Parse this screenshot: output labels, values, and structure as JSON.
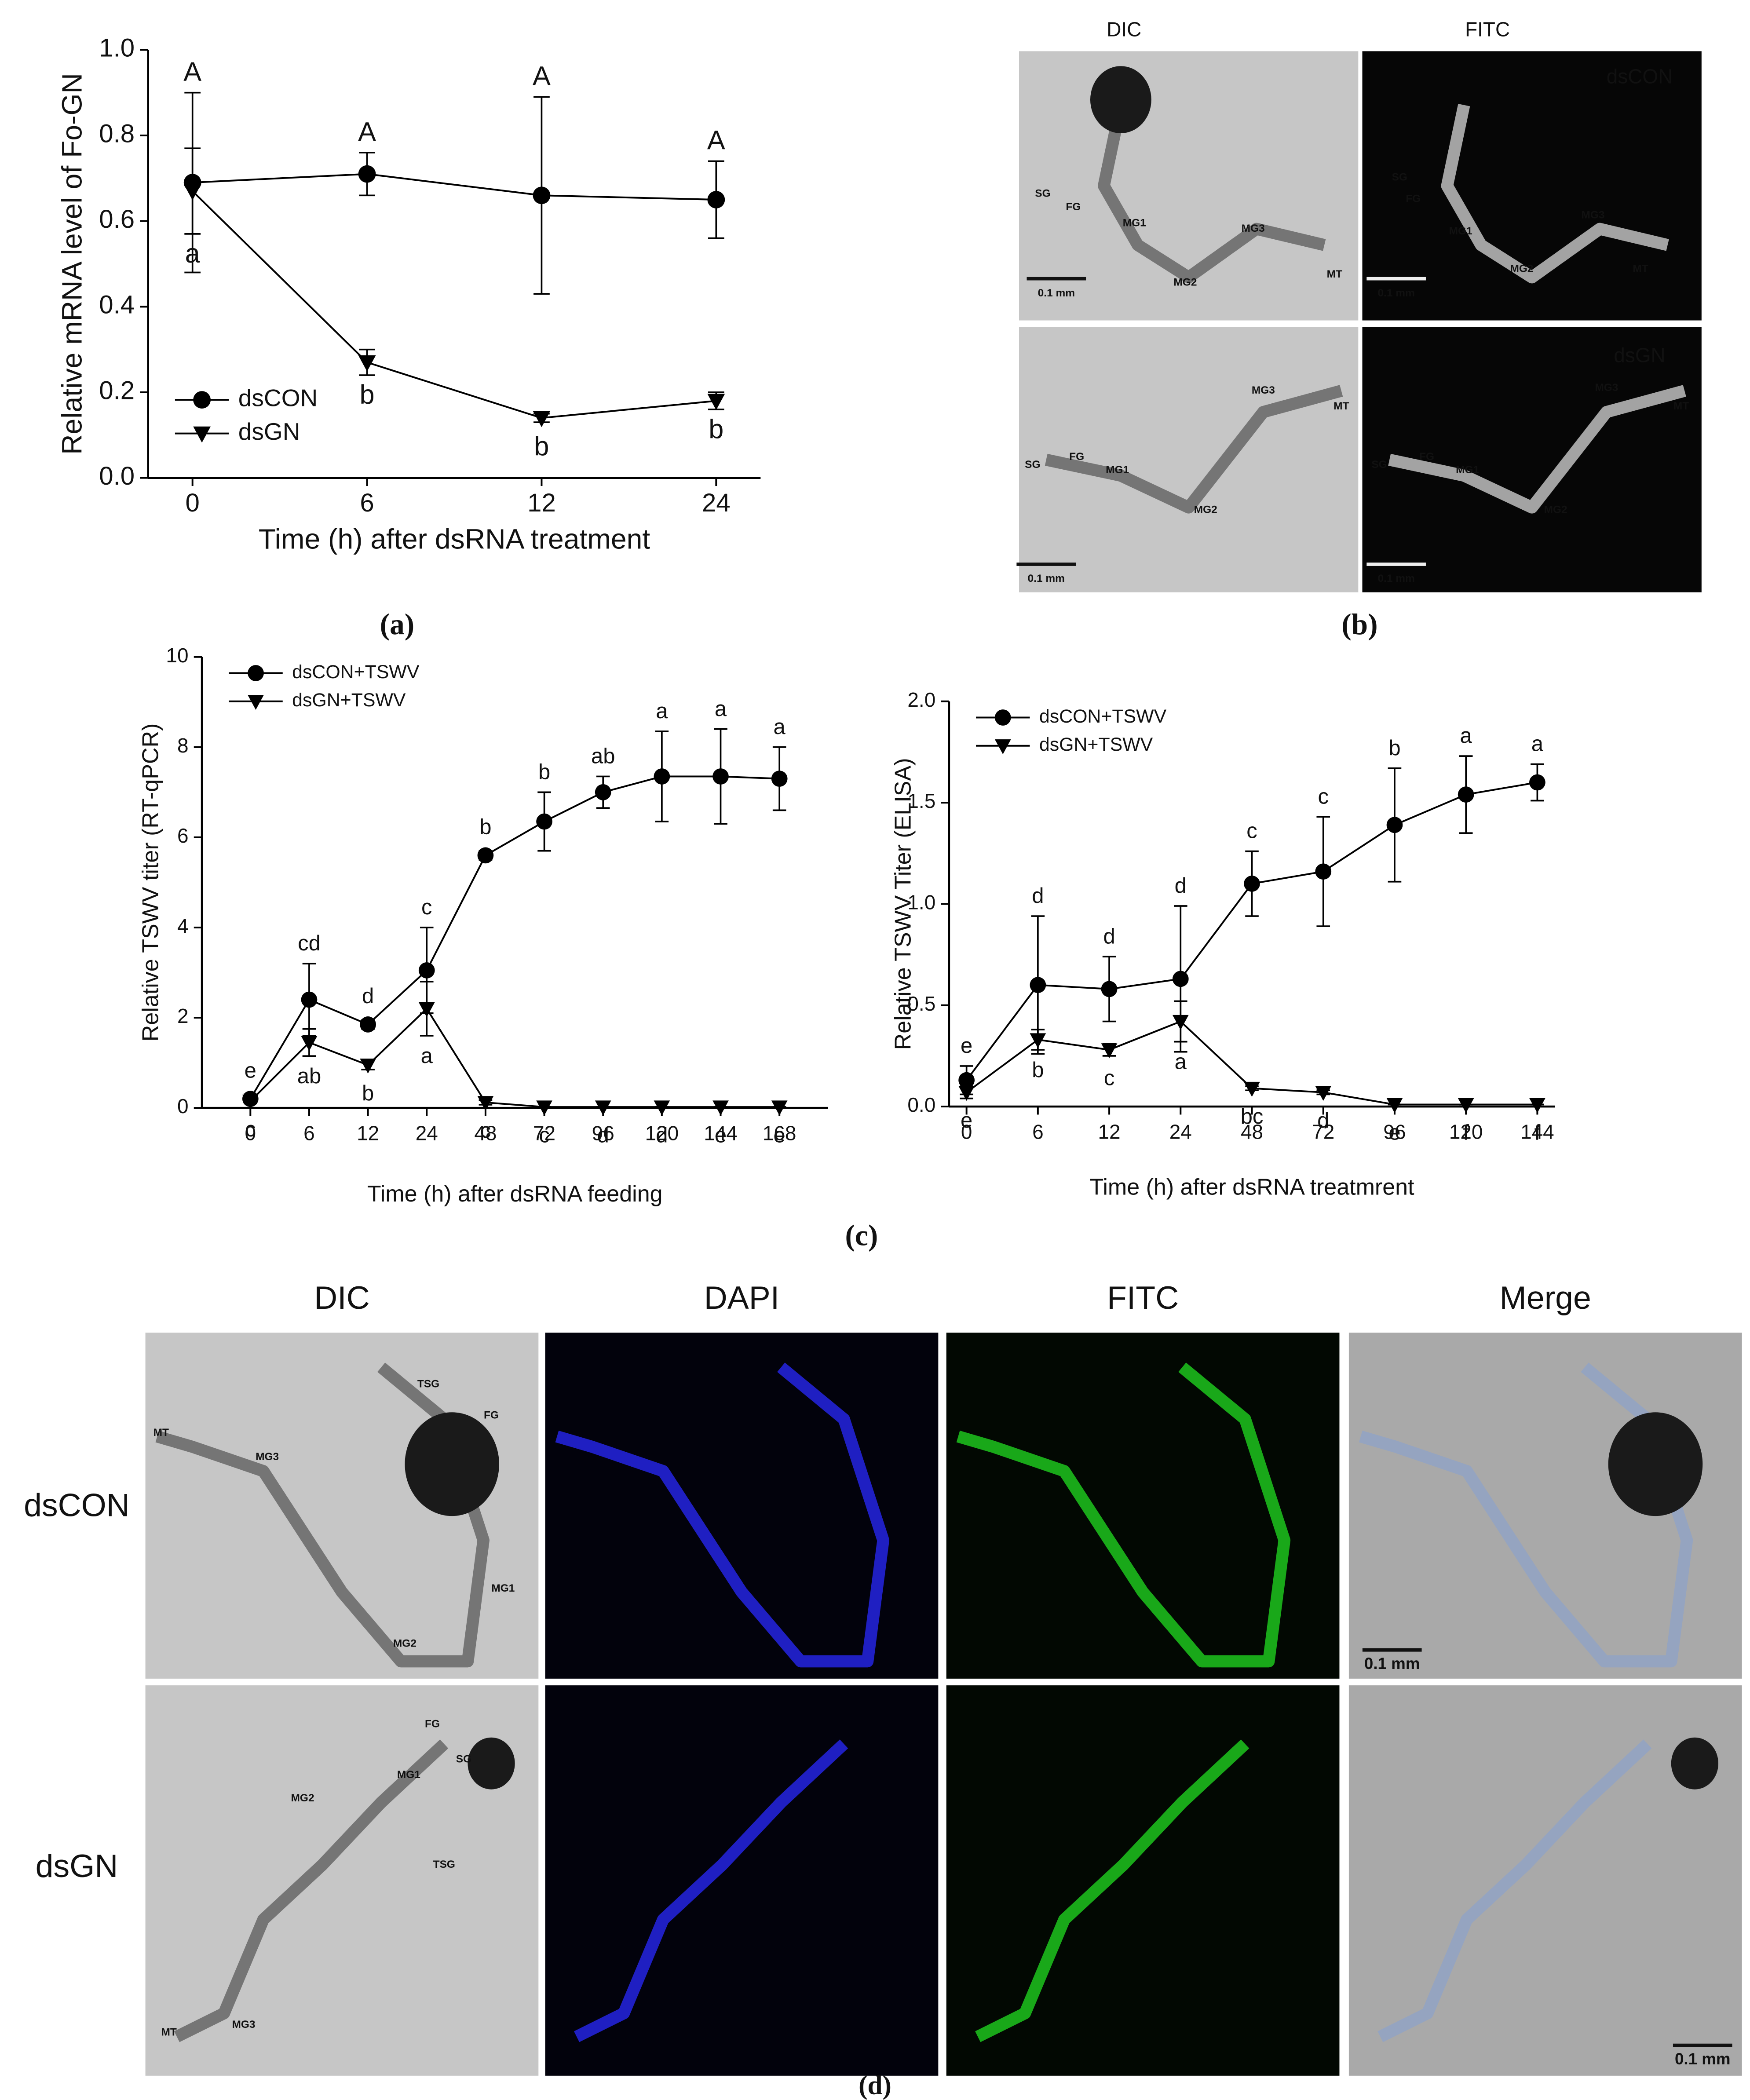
{
  "chart_data": [
    {
      "type": "line",
      "panel_label": "(a)",
      "ylabel": "Relative mRNA level of Fo-GN",
      "xlabel": "Time (h) after dsRNA treatment",
      "categories": [
        "0",
        "6",
        "12",
        "24"
      ],
      "series": [
        {
          "name": "dsCON",
          "color": "#000000",
          "marker": "circle",
          "values": [
            0.69,
            0.71,
            0.66,
            0.65
          ],
          "errors": [
            0.21,
            0.05,
            0.23,
            0.09
          ],
          "annotations": [
            "A",
            "A",
            "A",
            "A"
          ]
        },
        {
          "name": "dsGN",
          "color": "#000000",
          "marker": "triangle-down",
          "values": [
            0.67,
            0.27,
            0.14,
            0.18
          ],
          "errors": [
            0.1,
            0.03,
            0.01,
            0.02
          ],
          "annotations": [
            "a",
            "b",
            "b",
            "b"
          ]
        }
      ],
      "ylim": [
        0,
        1
      ],
      "yticks": [
        {
          "value": 0,
          "label": "0.0"
        },
        {
          "value": 0.2,
          "label": "0.2"
        },
        {
          "value": 0.4,
          "label": "0.4"
        },
        {
          "value": 0.6,
          "label": "0.6"
        },
        {
          "value": 0.8,
          "label": "0.8"
        },
        {
          "value": 1,
          "label": "1.0"
        }
      ],
      "legend": "lower left"
    },
    {
      "type": "line",
      "panel_label": "(c)",
      "ylabel": "Relative TSWV titer (RT-qPCR)",
      "xlabel": "Time (h) after dsRNA feeding",
      "categories": [
        "0",
        "6",
        "12",
        "24",
        "48",
        "72",
        "96",
        "120",
        "144",
        "168"
      ],
      "series": [
        {
          "name": "dsCON+TSWV",
          "color": "#000000",
          "marker": "circle",
          "values": [
            0.2,
            2.4,
            1.85,
            3.05,
            5.6,
            6.35,
            7.0,
            7.35,
            7.35,
            7.3
          ],
          "errors": [
            0.1,
            0.8,
            0.1,
            0.95,
            0.1,
            0.65,
            0.35,
            1.0,
            1.05,
            0.7
          ],
          "annotations": [
            "e",
            "cd",
            "d",
            "c",
            "b",
            "b",
            "ab",
            "a",
            "a",
            "a"
          ]
        },
        {
          "name": "dsGN+TSWV",
          "color": "#000000",
          "marker": "triangle-down",
          "values": [
            0.15,
            1.45,
            0.95,
            2.2,
            0.12,
            0.02,
            0.02,
            0.02,
            0.02,
            0.02
          ],
          "errors": [
            0.05,
            0.3,
            0.1,
            0.6,
            0.05,
            0,
            0,
            0,
            0,
            0
          ],
          "annotations": [
            "c",
            "ab",
            "b",
            "a",
            "c",
            "c",
            "d",
            "d",
            "e",
            "e"
          ]
        }
      ],
      "ylim": [
        0,
        10
      ],
      "yticks": [
        0,
        2,
        4,
        6,
        8,
        10
      ],
      "legend": "upper left"
    },
    {
      "type": "line",
      "ylabel": "Relative TSWV Titer (ELISA)",
      "xlabel": "Time (h) after dsRNA treatmrent",
      "categories": [
        "0",
        "6",
        "12",
        "24",
        "48",
        "72",
        "96",
        "120",
        "144"
      ],
      "series": [
        {
          "name": "dsCON+TSWV",
          "color": "#000000",
          "marker": "circle",
          "values": [
            0.13,
            0.6,
            0.58,
            0.63,
            1.1,
            1.16,
            1.39,
            1.54,
            1.6
          ],
          "errors": [
            0.07,
            0.34,
            0.16,
            0.36,
            0.16,
            0.27,
            0.28,
            0.19,
            0.09
          ],
          "annotations": [
            "e",
            "d",
            "d",
            "d",
            "c",
            "c",
            "b",
            "a",
            "a"
          ]
        },
        {
          "name": "dsGN+TSWV",
          "color": "#000000",
          "marker": "triangle-down",
          "values": [
            0.07,
            0.33,
            0.28,
            0.42,
            0.09,
            0.07,
            0.01,
            0.01,
            0.01
          ],
          "errors": [
            0.03,
            0.05,
            0.03,
            0.1,
            0.01,
            0.01,
            0,
            0,
            0
          ],
          "annotations": [
            "e",
            "b",
            "c",
            "a",
            "bc",
            "d",
            "e",
            "f",
            "f"
          ]
        }
      ],
      "ylim": [
        0,
        2
      ],
      "yticks": [
        {
          "value": 0,
          "label": "0.0"
        },
        {
          "value": 0.5,
          "label": "0.5"
        },
        {
          "value": 1,
          "label": "1.0"
        },
        {
          "value": 1.5,
          "label": "1.5"
        },
        {
          "value": 2,
          "label": "2.0"
        }
      ],
      "legend": "upper left"
    }
  ],
  "panel_b": {
    "label": "(b)",
    "columns": [
      "DIC",
      "FITC"
    ],
    "rows": [
      "dsCON",
      "dsGN"
    ],
    "images": [
      [
        "SG",
        "FG",
        "MG1",
        "MG2",
        "MG3",
        "MT",
        "0.1 mm"
      ],
      [
        "SG",
        "FG",
        "MG1",
        "MG2",
        "MG3",
        "MT",
        "0.1 mm"
      ],
      [
        "SG",
        "FG",
        "MG1",
        "MG2",
        "MG3",
        "MT",
        "0.1 mm"
      ],
      [
        "SG",
        "FG",
        "MG1",
        "MG2",
        "MG3",
        "MT",
        "0.1 mm"
      ]
    ]
  },
  "panel_d": {
    "label": "(d)",
    "columns": [
      "DIC",
      "DAPI",
      "FITC",
      "Merge"
    ],
    "rows": [
      "dsCON",
      "dsGN"
    ],
    "images": [
      [
        "TSG",
        "FG",
        "MT",
        "MG3",
        "MG1",
        "MG2"
      ],
      [],
      [],
      [
        "0.1 mm"
      ],
      [
        "FG",
        "SG",
        "MG1",
        "MG2",
        "TSG",
        "MT",
        "MG3"
      ],
      [],
      [],
      [
        "0.1 mm"
      ]
    ]
  }
}
